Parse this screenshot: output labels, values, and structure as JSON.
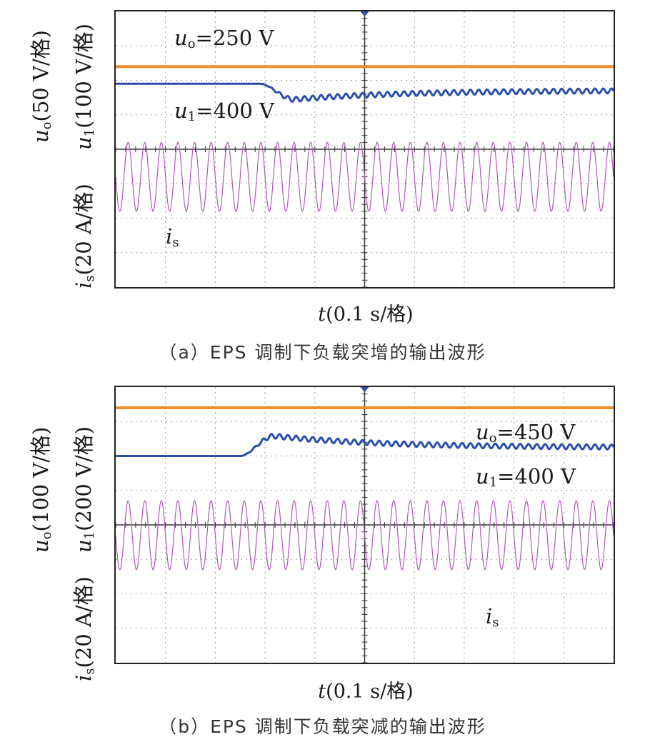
{
  "colors": {
    "u_o": "#f28c28",
    "u_1": "#2a4fa8",
    "i_s": "#b05ab8",
    "grid": "#9a9a9a",
    "frame": "#222222"
  },
  "chart_data": [
    {
      "id": "a",
      "type": "line",
      "caption": "（a）EPS 调制下负载突增的输出波形",
      "xlabel": {
        "var": "t",
        "unit": "(0.1 s/格)"
      },
      "ylabels": {
        "top": {
          "var": "u",
          "sub": "o",
          "unit": "(50 V/格)"
        },
        "top2": {
          "var": "u",
          "sub": "1",
          "unit": "(100 V/格)"
        },
        "bottom": {
          "var": "i",
          "sub": "s",
          "unit": "(20 A/格)"
        }
      },
      "divisions": {
        "x": 10,
        "y": 8
      },
      "event_time_div": 2.9,
      "series": [
        {
          "name": "u_o",
          "label_var": "u",
          "label_sub": "o",
          "label_value": "=250 V",
          "level_div": 1.6,
          "dip_div": 0
        },
        {
          "name": "u_1",
          "label_var": "u",
          "label_sub": "1",
          "label_value": "=400 V",
          "level_div": 2.1,
          "dip_div": 0.55,
          "ripple_div": 0.07
        },
        {
          "name": "i_s",
          "label_var": "i",
          "label_sub": "s",
          "cycles": 30,
          "center_div": 4.8,
          "amp_before_div": 1.0,
          "amp_after_div": 1.0,
          "offset_after_div": 0.35
        }
      ]
    },
    {
      "id": "b",
      "type": "line",
      "caption": "（b）EPS 调制下负载突减的输出波形",
      "xlabel": {
        "var": "t",
        "unit": "(0.1 s/格)"
      },
      "ylabels": {
        "top": {
          "var": "u",
          "sub": "o",
          "unit": "(100 V/格)"
        },
        "top2": {
          "var": "u",
          "sub": "1",
          "unit": "(200 V/格)"
        },
        "bottom": {
          "var": "i",
          "sub": "s",
          "unit": "(20 A/格)"
        }
      },
      "divisions": {
        "x": 10,
        "y": 8
      },
      "event_time_div": 2.5,
      "series": [
        {
          "name": "u_o",
          "label_var": "u",
          "label_sub": "o",
          "label_value": "=450 V",
          "level_div": 0.6,
          "dip_div": 0
        },
        {
          "name": "u_1",
          "label_var": "u",
          "label_sub": "1",
          "label_value": "=400 V",
          "level_div": 2.0,
          "dip_div": -0.7,
          "ripple_div": 0.07
        },
        {
          "name": "i_s",
          "label_var": "i",
          "label_sub": "s",
          "cycles": 30,
          "center_div": 4.3,
          "amp_before_div": 1.0,
          "amp_after_div": 1.0,
          "offset_after_div": 0.25
        }
      ]
    }
  ]
}
